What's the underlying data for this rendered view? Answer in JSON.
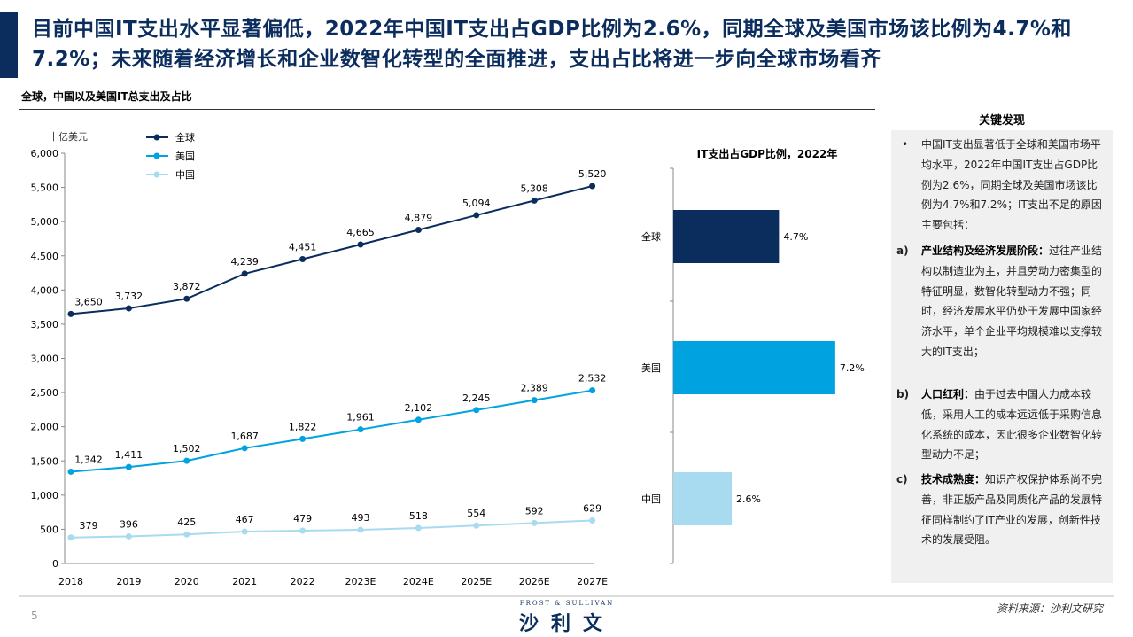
{
  "header": {
    "title": "目前中国IT支出水平显著偏低，2022年中国IT支出占GDP比例为2.6%，同期全球及美国市场该比例为4.7%和7.2%；未来随着经济增长和企业数智化转型的全面推进，支出占比将进一步向全球市场看齐",
    "subtitle": "全球，中国以及美国IT总支出及占比"
  },
  "chart_data": [
    {
      "type": "line",
      "ylabel": "十亿美元",
      "ylim": [
        0,
        6000
      ],
      "yticks": [
        "0",
        "500",
        "1,000",
        "1,500",
        "2,000",
        "2,500",
        "3,000",
        "3,500",
        "4,000",
        "4,500",
        "5,000",
        "5,500",
        "6,000"
      ],
      "categories": [
        "2018",
        "2019",
        "2020",
        "2021",
        "2022",
        "2023E",
        "2024E",
        "2025E",
        "2026E",
        "2027E"
      ],
      "legend_position": "top-left",
      "series": [
        {
          "name": "全球",
          "color": "#0b2d5e",
          "values": [
            3650,
            3732,
            3872,
            4239,
            4451,
            4665,
            4879,
            5094,
            5308,
            5520
          ],
          "labels": [
            "3,650",
            "3,732",
            "3,872",
            "4,239",
            "4,451",
            "4,665",
            "4,879",
            "5,094",
            "5,308",
            "5,520"
          ]
        },
        {
          "name": "美国",
          "color": "#00a3e0",
          "values": [
            1342,
            1411,
            1502,
            1687,
            1822,
            1961,
            2102,
            2245,
            2389,
            2532
          ],
          "labels": [
            "1,342",
            "1,411",
            "1,502",
            "1,687",
            "1,822",
            "1,961",
            "2,102",
            "2,245",
            "2,389",
            "2,532"
          ]
        },
        {
          "name": "中国",
          "color": "#a8daf0",
          "values": [
            379,
            396,
            425,
            467,
            479,
            493,
            518,
            554,
            592,
            629
          ],
          "labels": [
            "379",
            "396",
            "425",
            "467",
            "479",
            "493",
            "518",
            "554",
            "592",
            "629"
          ]
        }
      ]
    },
    {
      "type": "bar",
      "orientation": "horizontal",
      "title": "IT支出占GDP比例，2022年",
      "categories": [
        "全球",
        "美国",
        "中国"
      ],
      "values": [
        4.7,
        7.2,
        2.6
      ],
      "labels": [
        "4.7%",
        "7.2%",
        "2.6%"
      ],
      "colors": [
        "#0b2d5e",
        "#00a3e0",
        "#a8daf0"
      ]
    }
  ],
  "findings": {
    "heading": "关键发现",
    "bullet": "中国IT支出显著低于全球和美国市场平均水平，2022年中国IT支出占GDP比例为2.6%，同期全球及美国市场该比例为4.7%和7.2%；IT支出不足的原因主要包括：",
    "items": [
      {
        "marker": "a)",
        "title": "产业结构及经济发展阶段：",
        "text": "过往产业结构以制造业为主，并且劳动力密集型的特征明显，数智化转型动力不强；同时，经济发展水平仍处于发展中国家经济水平，单个企业平均规模难以支撑较大的IT支出；"
      },
      {
        "marker": "b)",
        "title": "人口红利：",
        "text": "由于过去中国人力成本较低，采用人工的成本远远低于采购信息化系统的成本，因此很多企业数智化转型动力不足；"
      },
      {
        "marker": "c)",
        "title": "技术成熟度：",
        "text": "知识产权保护体系尚不完善，非正版产品及同质化产品的发展特征同样制约了IT产业的发展，创新性技术的发展受阻。"
      }
    ]
  },
  "footer": {
    "page": "5",
    "logo_en": "FROST & SULLIVAN",
    "logo_cn": "沙利文",
    "source": "资料来源：沙利文研究"
  }
}
